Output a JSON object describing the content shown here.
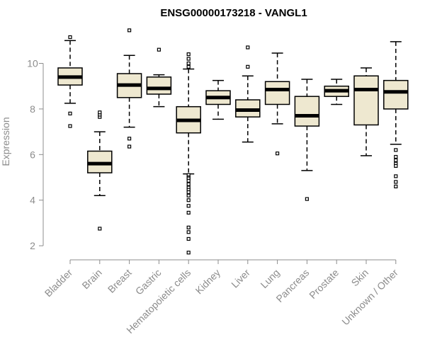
{
  "chart_data": {
    "type": "boxplot",
    "title": "ENSG00000173218 - VANGL1",
    "xlabel": "",
    "ylabel": "Expression",
    "ylim": [
      1.5,
      11.6
    ],
    "yticks": [
      2,
      4,
      6,
      8,
      10
    ],
    "box_fill": "#eee8d0",
    "categories": [
      "Bladder",
      "Brain",
      "Breast",
      "Gastric",
      "Hematopoietic cells",
      "Kidney",
      "Liver",
      "Lung",
      "Pancreas",
      "Prostate",
      "Skin",
      "Unknown / Other"
    ],
    "boxes": [
      {
        "name": "Bladder",
        "min": 8.25,
        "q1": 9.05,
        "median": 9.4,
        "q3": 9.8,
        "max": 11.0,
        "outliers": [
          11.15,
          7.8,
          7.25
        ]
      },
      {
        "name": "Brain",
        "min": 4.2,
        "q1": 5.2,
        "median": 5.6,
        "q3": 6.15,
        "max": 7.0,
        "outliers": [
          7.65,
          7.75,
          7.85,
          2.75
        ]
      },
      {
        "name": "Breast",
        "min": 7.2,
        "q1": 8.5,
        "median": 9.05,
        "q3": 9.55,
        "max": 10.35,
        "outliers": [
          11.45,
          6.7,
          6.35
        ]
      },
      {
        "name": "Gastric",
        "min": 8.1,
        "q1": 8.65,
        "median": 8.9,
        "q3": 9.4,
        "max": 9.5,
        "outliers": [
          10.6
        ]
      },
      {
        "name": "Hematopoietic cells",
        "min": 5.15,
        "q1": 6.95,
        "median": 7.5,
        "q3": 8.1,
        "max": 9.75,
        "outliers": [
          10.4,
          10.2,
          10.0,
          9.85,
          5.1,
          5.0,
          4.95,
          4.85,
          4.7,
          4.55,
          4.45,
          4.35,
          4.2,
          4.0,
          3.75,
          3.45,
          2.8,
          2.6,
          2.3,
          1.7
        ]
      },
      {
        "name": "Kidney",
        "min": 7.55,
        "q1": 8.2,
        "median": 8.5,
        "q3": 8.8,
        "max": 9.25,
        "outliers": []
      },
      {
        "name": "Liver",
        "min": 6.55,
        "q1": 7.65,
        "median": 7.95,
        "q3": 8.4,
        "max": 9.45,
        "outliers": [
          10.7,
          9.85
        ]
      },
      {
        "name": "Lung",
        "min": 7.35,
        "q1": 8.2,
        "median": 8.85,
        "q3": 9.2,
        "max": 10.45,
        "outliers": [
          6.05
        ]
      },
      {
        "name": "Pancreas",
        "min": 5.3,
        "q1": 7.25,
        "median": 7.7,
        "q3": 8.55,
        "max": 9.3,
        "outliers": [
          4.05
        ]
      },
      {
        "name": "Prostate",
        "min": 8.2,
        "q1": 8.55,
        "median": 8.8,
        "q3": 9.0,
        "max": 9.3,
        "outliers": []
      },
      {
        "name": "Skin",
        "min": 5.95,
        "q1": 7.3,
        "median": 8.85,
        "q3": 9.45,
        "max": 9.8,
        "outliers": []
      },
      {
        "name": "Unknown / Other",
        "min": 6.45,
        "q1": 8.0,
        "median": 8.75,
        "q3": 9.25,
        "max": 10.95,
        "outliers": [
          6.2,
          5.9,
          5.75,
          5.6,
          5.5,
          5.05,
          4.8,
          4.6
        ]
      }
    ]
  }
}
